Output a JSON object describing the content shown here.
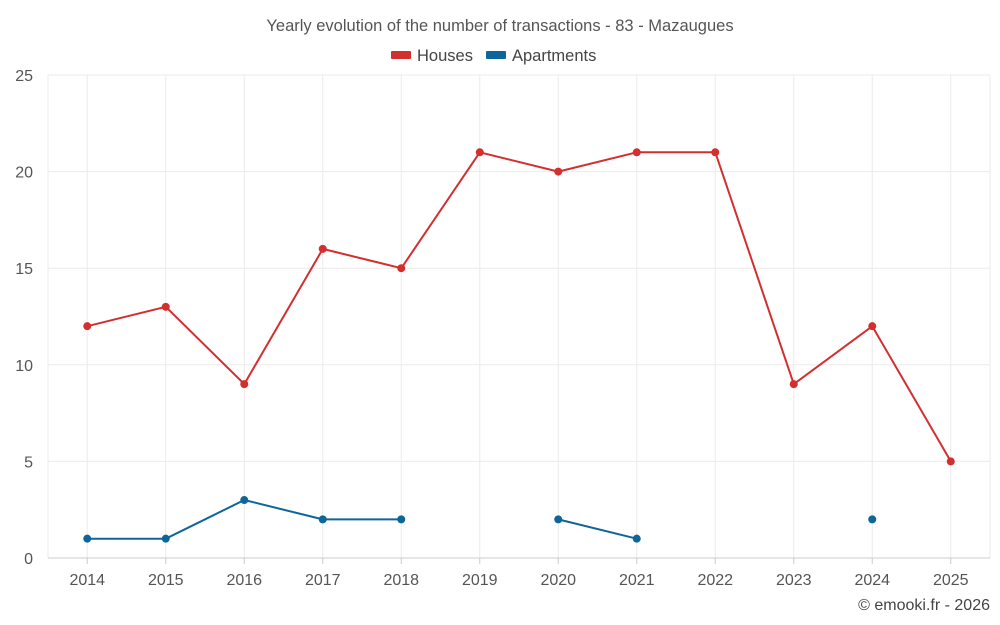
{
  "chart_data": {
    "type": "line",
    "title": "Yearly evolution of the number of transactions - 83 - Mazaugues",
    "categories": [
      "2014",
      "2015",
      "2016",
      "2017",
      "2018",
      "2019",
      "2020",
      "2021",
      "2022",
      "2023",
      "2024",
      "2025"
    ],
    "series": [
      {
        "name": "Houses",
        "color": "#d32f2f",
        "values": [
          12,
          13,
          9,
          16,
          15,
          21,
          20,
          21,
          21,
          9,
          12,
          5
        ]
      },
      {
        "name": "Apartments",
        "color": "#0d6699",
        "values": [
          1,
          1,
          3,
          2,
          2,
          null,
          2,
          1,
          null,
          null,
          2,
          null
        ]
      }
    ],
    "yticks": [
      "0",
      "5",
      "10",
      "15",
      "20",
      "25"
    ],
    "ylim": [
      0,
      25
    ],
    "xlabel": "",
    "ylabel": "",
    "grid": true,
    "legend_position": "top-center"
  },
  "credit": "© emooki.fr - 2026"
}
